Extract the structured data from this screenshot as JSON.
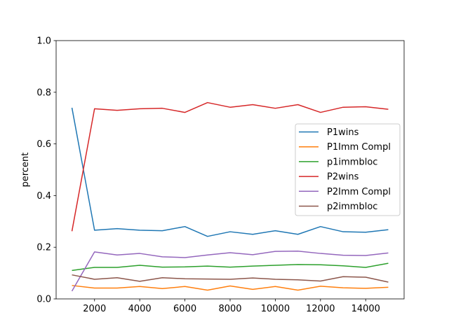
{
  "chart_data": {
    "type": "line",
    "title": "",
    "xlabel": "",
    "ylabel": "percent",
    "xlim": [
      300,
      15700
    ],
    "ylim": [
      0,
      1
    ],
    "grid": false,
    "legend_position": "center-right",
    "x_ticks": [
      2000,
      4000,
      6000,
      8000,
      10000,
      12000,
      14000
    ],
    "x_tick_labels": [
      "2000",
      "4000",
      "6000",
      "8000",
      "10000",
      "12000",
      "14000"
    ],
    "y_ticks": [
      0,
      0.2,
      0.4,
      0.6,
      0.8,
      1.0
    ],
    "y_tick_labels": [
      "0.0",
      "0.2",
      "0.4",
      "0.6",
      "0.8",
      "1.0"
    ],
    "x": [
      1000,
      2000,
      3000,
      4000,
      5000,
      6000,
      7000,
      8000,
      9000,
      10000,
      11000,
      12000,
      13000,
      14000,
      15000
    ],
    "series": [
      {
        "name": "P1wins",
        "color": "#1f77b4",
        "values": [
          0.74,
          0.266,
          0.272,
          0.266,
          0.264,
          0.28,
          0.242,
          0.26,
          0.25,
          0.264,
          0.25,
          0.28,
          0.26,
          0.258,
          0.268
        ]
      },
      {
        "name": "P1Imm Compl",
        "color": "#ff7f0e",
        "values": [
          0.052,
          0.042,
          0.042,
          0.048,
          0.04,
          0.048,
          0.034,
          0.05,
          0.037,
          0.048,
          0.034,
          0.049,
          0.043,
          0.041,
          0.045
        ]
      },
      {
        "name": "p1immbloc",
        "color": "#2ca02c",
        "values": [
          0.11,
          0.122,
          0.122,
          0.13,
          0.123,
          0.124,
          0.127,
          0.123,
          0.127,
          0.13,
          0.133,
          0.132,
          0.128,
          0.122,
          0.138
        ]
      },
      {
        "name": "P2wins",
        "color": "#d62728",
        "values": [
          0.262,
          0.736,
          0.73,
          0.736,
          0.738,
          0.722,
          0.76,
          0.742,
          0.752,
          0.738,
          0.752,
          0.722,
          0.742,
          0.744,
          0.734
        ]
      },
      {
        "name": "P2Imm Compl",
        "color": "#9467bd",
        "values": [
          0.03,
          0.182,
          0.17,
          0.176,
          0.163,
          0.16,
          0.17,
          0.179,
          0.171,
          0.184,
          0.185,
          0.176,
          0.169,
          0.168,
          0.178
        ]
      },
      {
        "name": "p2immbloc",
        "color": "#8c564b",
        "values": [
          0.093,
          0.076,
          0.082,
          0.068,
          0.082,
          0.078,
          0.077,
          0.076,
          0.081,
          0.076,
          0.074,
          0.069,
          0.086,
          0.084,
          0.065
        ]
      }
    ]
  }
}
